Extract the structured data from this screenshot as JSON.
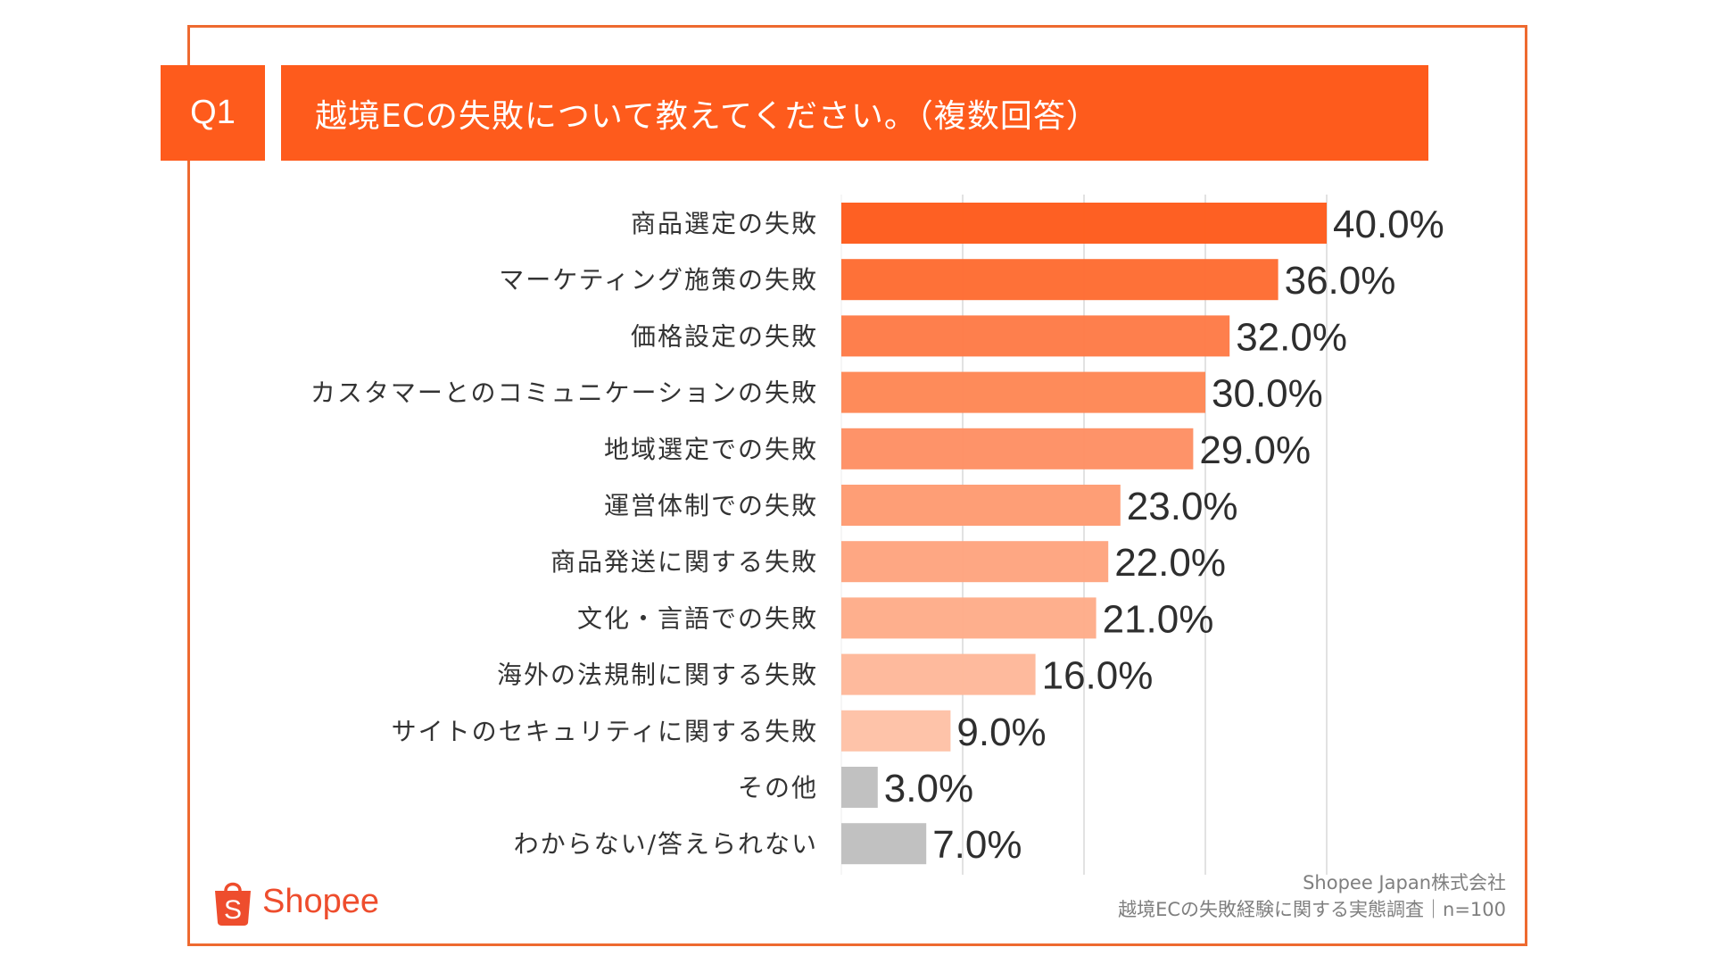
{
  "header": {
    "question_number": "Q1",
    "title": "越境ECの失敗について教えてください。（複数回答）"
  },
  "colors": {
    "frame": "#ee6a30",
    "header_bg": "#fe5b1c",
    "brand": "#ee4d2d",
    "grid": "#d9d9d9",
    "other_bars": "#bfbfbf"
  },
  "chart_data": {
    "type": "bar",
    "orientation": "horizontal",
    "title": "越境ECの失敗について教えてください。（複数回答）",
    "xlabel": "",
    "ylabel": "",
    "xlim": [
      0,
      40
    ],
    "grid": true,
    "grid_step": 10,
    "unit": "%",
    "categories": [
      "商品選定の失敗",
      "マーケティング施策の失敗",
      "価格設定の失敗",
      "カスタマーとのコミュニケーションの失敗",
      "地域選定での失敗",
      "運営体制での失敗",
      "商品発送に関する失敗",
      "文化・言語での失敗",
      "海外の法規制に関する失敗",
      "サイトのセキュリティに関する失敗",
      "その他",
      "わからない/答えられない"
    ],
    "values": [
      40.0,
      36.0,
      32.0,
      30.0,
      29.0,
      23.0,
      22.0,
      21.0,
      16.0,
      9.0,
      3.0,
      7.0
    ],
    "data_labels": [
      "40.0%",
      "36.0%",
      "32.0%",
      "30.0%",
      "29.0%",
      "23.0%",
      "22.0%",
      "21.0%",
      "16.0%",
      "9.0%",
      "3.0%",
      "7.0%"
    ],
    "bar_colors": [
      "#fe5b1c",
      "#fe6c32",
      "#fe7b47",
      "#fe8755",
      "#fe9064",
      "#fe9b72",
      "#fea47f",
      "#feac89",
      "#feb89a",
      "#fec1a6",
      "#bfbfbf",
      "#bfbfbf"
    ]
  },
  "footer": {
    "company": "Shopee Japan株式会社",
    "survey": "越境ECの失敗経験に関する実態調査｜n=100",
    "logo_text": "Shopee",
    "logo_icon": "shopping-bag-icon"
  }
}
